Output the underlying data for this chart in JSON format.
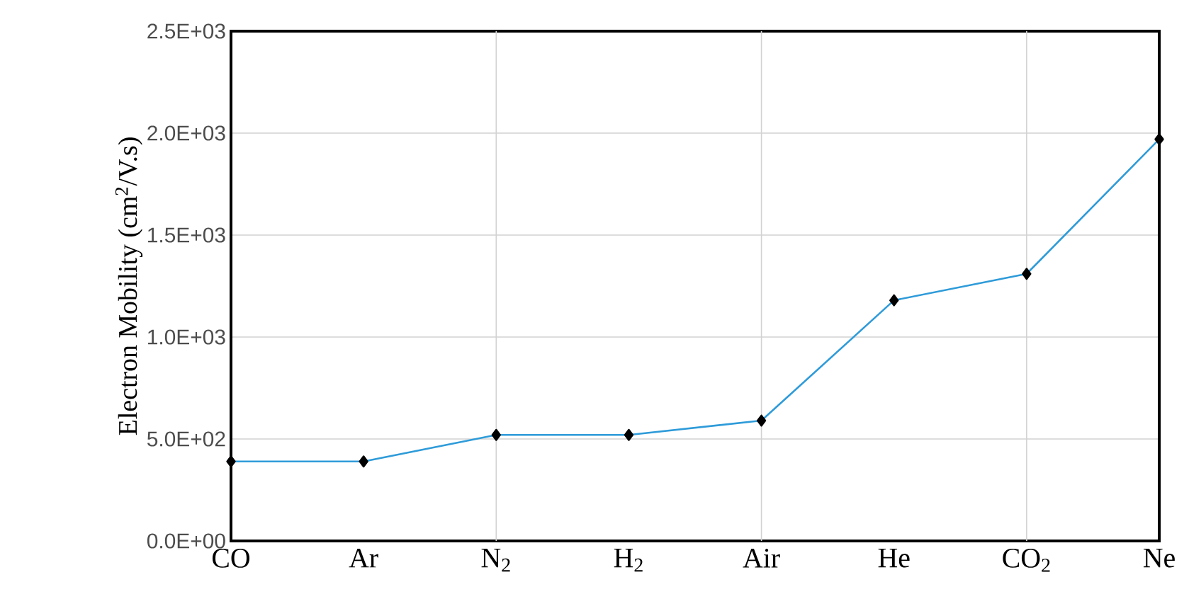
{
  "chart_data": {
    "type": "line",
    "ylabel": "Electron Mobility (cm$^{2}$/V.s)",
    "categories": [
      "CO",
      "Ar",
      "N$_{2}$",
      "H$_{2}$",
      "Air",
      "He",
      "CO$_{2}$",
      "Ne"
    ],
    "series": [
      {
        "color": "#2e9bd9",
        "values": [
          390,
          390,
          520,
          520,
          590,
          1180,
          1310,
          1970
        ]
      }
    ],
    "ylim": [
      0,
      2500
    ],
    "yticks": [
      {
        "value": 0,
        "label": "0.0E+00"
      },
      {
        "value": 500,
        "label": "5.0E+02"
      },
      {
        "value": 1000,
        "label": "1.0E+03"
      },
      {
        "value": 1500,
        "label": "1.5E+03"
      },
      {
        "value": 2000,
        "label": "2.0E+03"
      },
      {
        "value": 2500,
        "label": "2.5E+03"
      }
    ],
    "grid": true,
    "marker": "diamond",
    "line_style": "solid"
  }
}
